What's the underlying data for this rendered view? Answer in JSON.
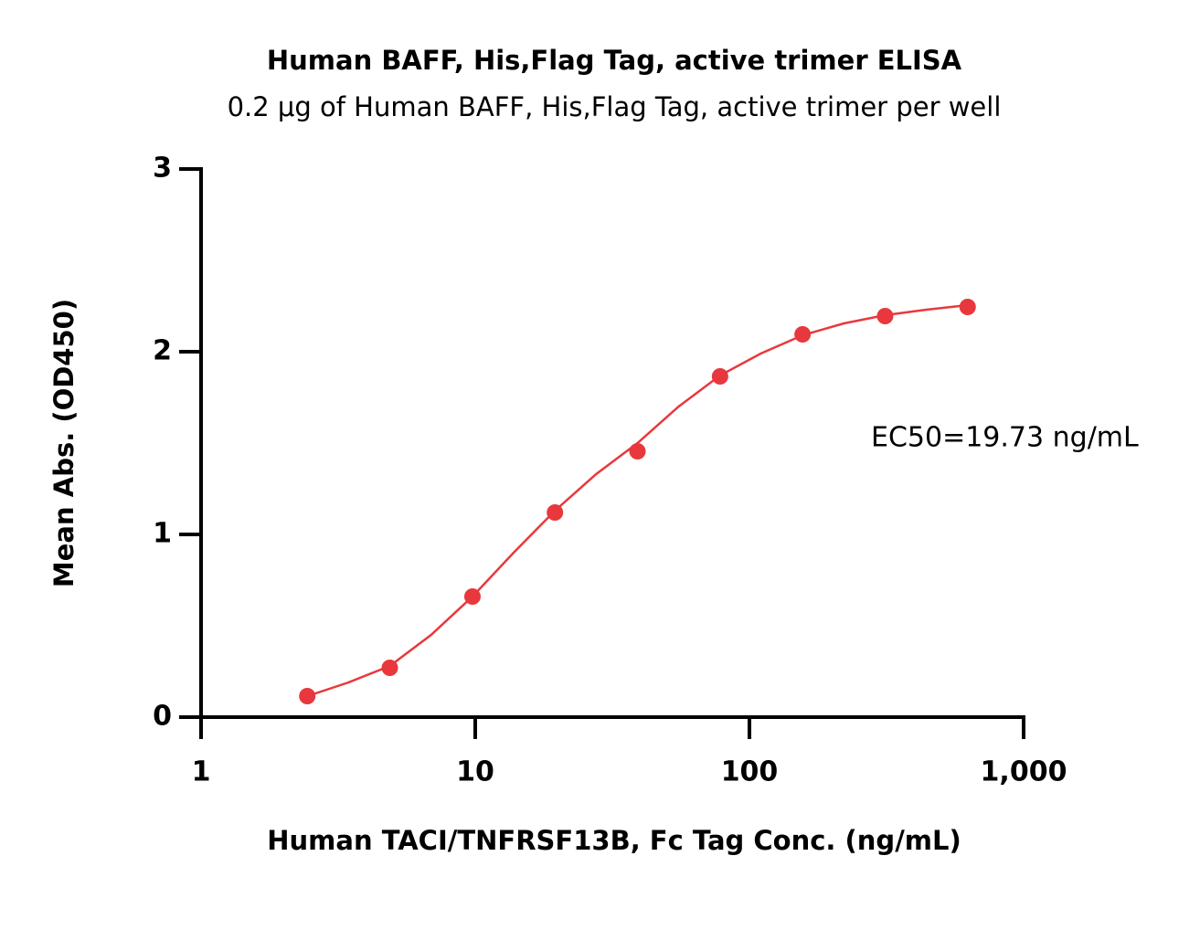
{
  "chart_data": {
    "type": "scatter",
    "title": "Human BAFF, His,Flag Tag, active trimer ELISA",
    "subtitle": "0.2 μg of Human BAFF, His,Flag Tag, active trimer per well",
    "x_label": "Human TACI/TNFRSF13B, Fc Tag Conc. (ng/mL)",
    "y_label": "Mean Abs. (OD450)",
    "annotation": "EC50=19.73 ng/mL",
    "x_scale": "log",
    "xlim": [
      1,
      1000
    ],
    "xticks": [
      1,
      10,
      100,
      {
        "value": 1000,
        "label": "1,000"
      }
    ],
    "ylim": [
      0,
      3
    ],
    "yticks": [
      0,
      1,
      2,
      3
    ],
    "series": [
      {
        "mode": "markers",
        "color": "#e8383d",
        "x": [
          2.44,
          4.88,
          9.77,
          19.53,
          39.06,
          78.13,
          156.25,
          312.5,
          625
        ],
        "values": [
          0.115,
          0.27,
          0.66,
          1.12,
          1.455,
          1.865,
          2.095,
          2.195,
          2.245
        ]
      },
      {
        "mode": "line",
        "color": "#e8383d",
        "x": [
          2.44,
          3.45,
          4.88,
          6.9,
          9.77,
          13.8,
          19.53,
          27.6,
          39.06,
          55.2,
          78.13,
          110,
          156.25,
          221,
          312.5,
          442,
          625
        ],
        "values": [
          0.115,
          0.19,
          0.28,
          0.45,
          0.66,
          0.9,
          1.13,
          1.33,
          1.5,
          1.7,
          1.87,
          1.99,
          2.09,
          2.155,
          2.2,
          2.23,
          2.255
        ]
      }
    ]
  }
}
